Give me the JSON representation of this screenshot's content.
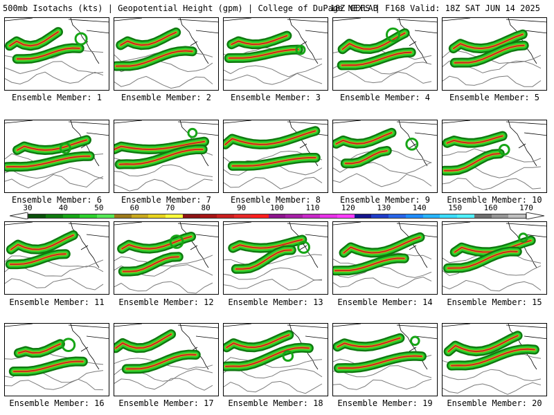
{
  "header": {
    "left": "500mb Isotachs (kts) | Geopotential Height (gpm) | College of DuPage NEXLAB",
    "right": "18Z GEFS | F168 Valid: 18Z SAT JUN 14 2025"
  },
  "panels": [
    {
      "label": "Ensemble Member: 1"
    },
    {
      "label": "Ensemble Member: 2"
    },
    {
      "label": "Ensemble Member: 3"
    },
    {
      "label": "Ensemble Member: 4"
    },
    {
      "label": "Ensemble Member: 5"
    },
    {
      "label": "Ensemble Member: 6"
    },
    {
      "label": "Ensemble Member: 7"
    },
    {
      "label": "Ensemble Member: 8"
    },
    {
      "label": "Ensemble Member: 9"
    },
    {
      "label": "Ensemble Member: 10"
    },
    {
      "label": "Ensemble Member: 11"
    },
    {
      "label": "Ensemble Member: 12"
    },
    {
      "label": "Ensemble Member: 13"
    },
    {
      "label": "Ensemble Member: 14"
    },
    {
      "label": "Ensemble Member: 15"
    },
    {
      "label": "Ensemble Member: 16"
    },
    {
      "label": "Ensemble Member: 17"
    },
    {
      "label": "Ensemble Member: 18"
    },
    {
      "label": "Ensemble Member: 19"
    },
    {
      "label": "Ensemble Member: 20"
    }
  ],
  "legend": {
    "ticks": [
      "30",
      "40",
      "50",
      "60",
      "70",
      "80",
      "90",
      "100",
      "110",
      "120",
      "130",
      "140",
      "150",
      "160",
      "170"
    ],
    "colors": [
      "#0a4f0a",
      "#0f7a0f",
      "#16a516",
      "#2ccf2c",
      "#55e655",
      "#9c7a1a",
      "#c8a81e",
      "#e6d21e",
      "#ffff3c",
      "#8c1414",
      "#a51414",
      "#c81e1e",
      "#e62828",
      "#ff1e1e",
      "#8c148c",
      "#a51ea5",
      "#c828c8",
      "#e632e6",
      "#ff3cff",
      "#14148c",
      "#1e3cc8",
      "#2864e6",
      "#1e8cff",
      "#28b4ff",
      "#3cdcff",
      "#50f0ff",
      "#6e6e6e",
      "#969696",
      "#bebebe"
    ]
  }
}
